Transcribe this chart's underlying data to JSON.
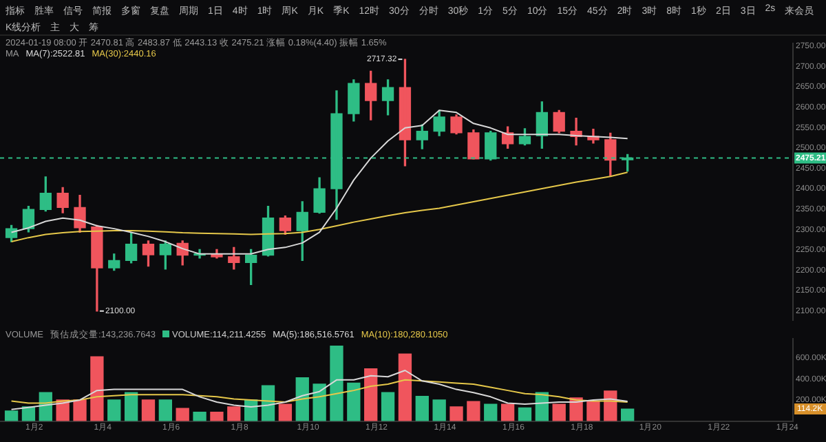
{
  "chart_data": [
    {
      "type": "other",
      "annotations": [
        "指标",
        "胜率",
        "信号",
        "简报",
        "多窗",
        "复盘",
        "周期",
        "1日",
        "4时",
        "1时",
        "周K",
        "月K",
        "季K",
        "12时",
        "30分",
        "分时",
        "30秒",
        "1分",
        "5分",
        "10分",
        "15分",
        "45分",
        "2时",
        "3时",
        "8时",
        "1秒",
        "2日",
        "3日",
        "2s",
        "来会员",
        "K线分析",
        "主",
        "大",
        "筹"
      ]
    },
    {
      "type": "candlestick",
      "x": [
        "2024-01-01T08:00",
        "2024-01-01T20:00",
        "2024-01-02T08:00",
        "2024-01-02T20:00",
        "2024-01-03T08:00",
        "2024-01-03T20:00",
        "2024-01-04T08:00",
        "2024-01-04T20:00",
        "2024-01-05T08:00",
        "2024-01-05T20:00",
        "2024-01-06T08:00",
        "2024-01-06T20:00",
        "2024-01-07T08:00",
        "2024-01-07T20:00",
        "2024-01-08T08:00",
        "2024-01-08T20:00",
        "2024-01-09T08:00",
        "2024-01-09T20:00",
        "2024-01-10T08:00",
        "2024-01-10T20:00",
        "2024-01-11T08:00",
        "2024-01-11T20:00",
        "2024-01-12T08:00",
        "2024-01-12T20:00",
        "2024-01-13T08:00",
        "2024-01-13T20:00",
        "2024-01-14T08:00",
        "2024-01-14T20:00",
        "2024-01-15T08:00",
        "2024-01-15T20:00",
        "2024-01-16T08:00",
        "2024-01-16T20:00",
        "2024-01-17T08:00",
        "2024-01-17T20:00",
        "2024-01-18T08:00",
        "2024-01-18T20:00",
        "2024-01-19T08:00"
      ],
      "ohlc": [
        [
          2280,
          2310,
          2270,
          2302
        ],
        [
          2302,
          2357,
          2294,
          2349
        ],
        [
          2349,
          2429,
          2345,
          2389
        ],
        [
          2389,
          2403,
          2341,
          2354
        ],
        [
          2354,
          2384,
          2293,
          2304
        ],
        [
          2306,
          2310,
          2100,
          2206
        ],
        [
          2206,
          2240,
          2200,
          2224
        ],
        [
          2224,
          2291,
          2218,
          2264
        ],
        [
          2264,
          2272,
          2210,
          2238
        ],
        [
          2238,
          2272,
          2203,
          2264
        ],
        [
          2266,
          2272,
          2213,
          2237
        ],
        [
          2237,
          2251,
          2230,
          2240
        ],
        [
          2240,
          2251,
          2230,
          2233
        ],
        [
          2233,
          2256,
          2203,
          2219
        ],
        [
          2219,
          2251,
          2165,
          2237
        ],
        [
          2237,
          2357,
          2235,
          2328
        ],
        [
          2328,
          2333,
          2288,
          2297
        ],
        [
          2297,
          2368,
          2224,
          2342
        ],
        [
          2342,
          2427,
          2340,
          2400
        ],
        [
          2400,
          2640,
          2325,
          2584
        ],
        [
          2584,
          2667,
          2566,
          2658
        ],
        [
          2658,
          2688,
          2569,
          2616
        ],
        [
          2616,
          2667,
          2581,
          2648
        ],
        [
          2648,
          2717.32,
          2456,
          2520
        ],
        [
          2520,
          2557,
          2498,
          2541
        ],
        [
          2541,
          2592,
          2530,
          2576
        ],
        [
          2576,
          2581,
          2534,
          2537
        ],
        [
          2537,
          2544,
          2473,
          2473
        ],
        [
          2473,
          2541,
          2470,
          2537
        ],
        [
          2537,
          2552,
          2499,
          2510
        ],
        [
          2510,
          2547,
          2507,
          2528
        ],
        [
          2530,
          2613,
          2499,
          2587
        ],
        [
          2587,
          2592,
          2537,
          2541
        ],
        [
          2541,
          2573,
          2507,
          2528
        ],
        [
          2528,
          2546,
          2512,
          2520
        ],
        [
          2520,
          2536,
          2430,
          2470
        ],
        [
          2470.81,
          2483.87,
          2443.13,
          2475.21
        ]
      ],
      "colors": [
        "#2ebd85",
        "#2ebd85",
        "#2ebd85",
        "#f0555d",
        "#f0555d",
        "#f0555d",
        "#2ebd85",
        "#2ebd85",
        "#f0555d",
        "#2ebd85",
        "#f0555d",
        "#2ebd85",
        "#f0555d",
        "#f0555d",
        "#2ebd85",
        "#2ebd85",
        "#f0555d",
        "#2ebd85",
        "#2ebd85",
        "#2ebd85",
        "#2ebd85",
        "#f0555d",
        "#2ebd85",
        "#f0555d",
        "#2ebd85",
        "#2ebd85",
        "#f0555d",
        "#f0555d",
        "#2ebd85",
        "#f0555d",
        "#2ebd85",
        "#2ebd85",
        "#f0555d",
        "#f0555d",
        "#f0555d",
        "#f0555d",
        "#2ebd85"
      ],
      "series": [
        {
          "type": "line",
          "name": "MA(7):2522.81",
          "color": "#d8d8d8",
          "values": [
            2293,
            2304,
            2320,
            2328,
            2323,
            2309,
            2302,
            2293,
            2283,
            2270,
            2253,
            2240,
            2240,
            2240,
            2240,
            2251,
            2256,
            2267,
            2293,
            2352,
            2421,
            2475,
            2517,
            2549,
            2555,
            2592,
            2587,
            2560,
            2549,
            2533,
            2533,
            2533,
            2533,
            2530,
            2528,
            2526,
            2522.81
          ]
        },
        {
          "type": "line",
          "name": "MA(30):2440.16",
          "color": "#e6c84a",
          "values": [
            2270,
            2280,
            2288,
            2292,
            2295,
            2296,
            2297,
            2297,
            2296,
            2294,
            2292,
            2291,
            2290,
            2289,
            2288,
            2289,
            2290,
            2293,
            2300,
            2309,
            2318,
            2326,
            2334,
            2341,
            2347,
            2352,
            2360,
            2368,
            2376,
            2384,
            2392,
            2400,
            2408,
            2416,
            2423,
            2430,
            2440.16
          ]
        }
      ],
      "xlim": [
        "2024-01-01T00:00",
        "2024-01-24T04:00"
      ],
      "ylim": [
        2078,
        2756
      ],
      "yticks": [
        {
          "value": 2100,
          "label": "2100.00"
        },
        {
          "value": 2150,
          "label": "2150.00"
        },
        {
          "value": 2200,
          "label": "2200.00"
        },
        {
          "value": 2250,
          "label": "2250.00"
        },
        {
          "value": 2300,
          "label": "2300.00"
        },
        {
          "value": 2350,
          "label": "2350.00"
        },
        {
          "value": 2400,
          "label": "2400.00"
        },
        {
          "value": 2450,
          "label": "2450.00"
        },
        {
          "value": 2500,
          "label": "2500.00"
        },
        {
          "value": 2550,
          "label": "2550.00"
        },
        {
          "value": 2600,
          "label": "2600.00"
        },
        {
          "value": 2650,
          "label": "2650.00"
        },
        {
          "value": 2700,
          "label": "2700.00"
        },
        {
          "value": 2750,
          "label": "2750.00"
        }
      ],
      "tick_labels": "y",
      "legend": "top left",
      "ref_lines": [
        {
          "axis": "y",
          "value": 2475.21,
          "label": "2475.21",
          "color": "#2ebd85",
          "line_style": "dashed"
        }
      ],
      "annotations": [
        "2024-01-19 08:00 开 2470.81 高 2483.87 低 2443.13 收 2475.21 涨幅 0.18%(4.40) 振幅 1.65%",
        "MA",
        {
          "text": "2717.32",
          "x": "2024-01-12T20:00",
          "y": 2717.32
        },
        {
          "text": "2100.00",
          "x": "2024-01-03T20:00",
          "y": 2100
        }
      ]
    },
    {
      "type": "bar",
      "x": [
        "2024-01-01T08:00",
        "2024-01-01T20:00",
        "2024-01-02T08:00",
        "2024-01-02T20:00",
        "2024-01-03T08:00",
        "2024-01-03T20:00",
        "2024-01-04T08:00",
        "2024-01-04T20:00",
        "2024-01-05T08:00",
        "2024-01-05T20:00",
        "2024-01-06T08:00",
        "2024-01-06T20:00",
        "2024-01-07T08:00",
        "2024-01-07T20:00",
        "2024-01-08T08:00",
        "2024-01-08T20:00",
        "2024-01-09T08:00",
        "2024-01-09T20:00",
        "2024-01-10T08:00",
        "2024-01-10T20:00",
        "2024-01-11T08:00",
        "2024-01-11T20:00",
        "2024-01-12T08:00",
        "2024-01-12T20:00",
        "2024-01-13T08:00",
        "2024-01-13T20:00",
        "2024-01-14T08:00",
        "2024-01-14T20:00",
        "2024-01-15T08:00",
        "2024-01-15T20:00",
        "2024-01-16T08:00",
        "2024-01-16T20:00",
        "2024-01-17T08:00",
        "2024-01-17T20:00",
        "2024-01-18T08:00",
        "2024-01-18T20:00",
        "2024-01-19T08:00"
      ],
      "series": [
        {
          "type": "bar",
          "name": "VOLUME:114,211.4255",
          "colors": [
            "#2ebd85",
            "#2ebd85",
            "#2ebd85",
            "#f0555d",
            "#f0555d",
            "#f0555d",
            "#2ebd85",
            "#2ebd85",
            "#f0555d",
            "#2ebd85",
            "#f0555d",
            "#2ebd85",
            "#f0555d",
            "#f0555d",
            "#2ebd85",
            "#2ebd85",
            "#f0555d",
            "#2ebd85",
            "#2ebd85",
            "#2ebd85",
            "#2ebd85",
            "#f0555d",
            "#2ebd85",
            "#f0555d",
            "#2ebd85",
            "#2ebd85",
            "#f0555d",
            "#f0555d",
            "#2ebd85",
            "#f0555d",
            "#2ebd85",
            "#2ebd85",
            "#f0555d",
            "#f0555d",
            "#f0555d",
            "#f0555d",
            "#2ebd85"
          ],
          "values": [
            95,
            135,
            270,
            200,
            200,
            610,
            200,
            270,
            200,
            200,
            120,
            85,
            85,
            135,
            200,
            335,
            160,
            410,
            350,
            710,
            360,
            495,
            270,
            635,
            235,
            200,
            135,
            185,
            160,
            160,
            125,
            270,
            160,
            220,
            185,
            285,
            114.2114255
          ]
        },
        {
          "type": "line",
          "name": "MA(5):186,516.5761",
          "color": "#d8d8d8",
          "values": [
            110,
            130,
            150,
            170,
            200,
            290,
            300,
            300,
            300,
            300,
            300,
            230,
            180,
            150,
            135,
            150,
            180,
            240,
            280,
            390,
            390,
            430,
            420,
            480,
            380,
            350,
            300,
            270,
            230,
            170,
            160,
            170,
            180,
            180,
            200,
            210,
            186.5165761
          ]
        },
        {
          "type": "line",
          "name": "MA(10):180,280.1050",
          "color": "#e6c84a",
          "values": [
            190,
            170,
            170,
            190,
            200,
            230,
            240,
            250,
            250,
            250,
            250,
            240,
            230,
            210,
            200,
            190,
            180,
            210,
            230,
            260,
            290,
            330,
            350,
            390,
            380,
            370,
            360,
            350,
            320,
            290,
            260,
            250,
            230,
            200,
            190,
            190,
            180.280105
          ]
        }
      ],
      "xlim": [
        "2024-01-01T00:00",
        "2024-01-24T04:00"
      ],
      "xticks": [
        {
          "value": "2024-01-02",
          "label": "1月2"
        },
        {
          "value": "2024-01-04",
          "label": "1月4"
        },
        {
          "value": "2024-01-06",
          "label": "1月6"
        },
        {
          "value": "2024-01-08",
          "label": "1月8"
        },
        {
          "value": "2024-01-10",
          "label": "1月10"
        },
        {
          "value": "2024-01-12",
          "label": "1月12"
        },
        {
          "value": "2024-01-14",
          "label": "1月14"
        },
        {
          "value": "2024-01-16",
          "label": "1月16"
        },
        {
          "value": "2024-01-18",
          "label": "1月18"
        },
        {
          "value": "2024-01-20",
          "label": "1月20"
        },
        {
          "value": "2024-01-22",
          "label": "1月22"
        },
        {
          "value": "2024-01-24",
          "label": "1月24"
        }
      ],
      "ylim": [
        0,
        780
      ],
      "yticks": [
        {
          "value": 200,
          "label": "200.00K"
        },
        {
          "value": 400,
          "label": "400.00K"
        },
        {
          "value": 600,
          "label": "600.00K"
        }
      ],
      "legend": "top left",
      "annotations": [
        "VOLUME",
        "预估成交量:143,236.7643",
        {
          "text": "114.2K",
          "y": 114.2114255
        }
      ]
    }
  ]
}
